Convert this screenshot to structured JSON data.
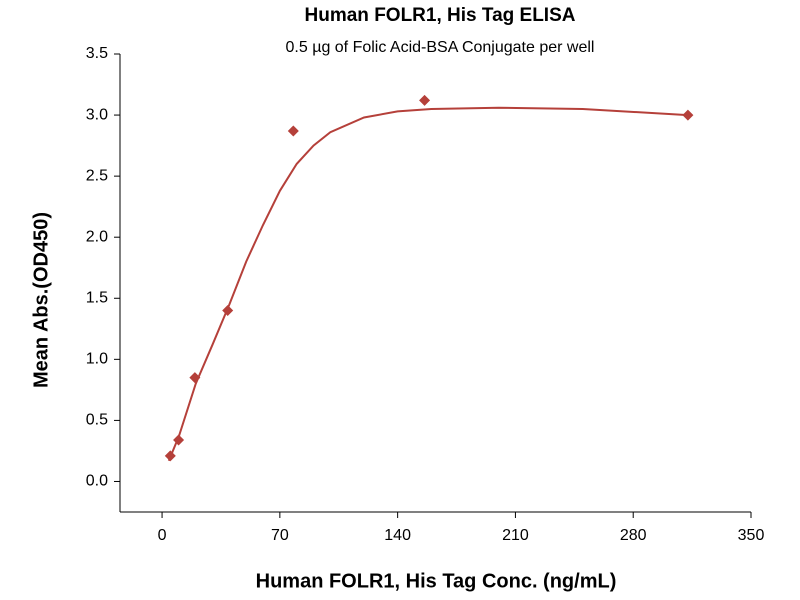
{
  "chart_data": {
    "type": "scatter",
    "title": "Human FOLR1, His Tag ELISA",
    "subtitle": "0.5 µg of Folic Acid-BSA Conjugate per well",
    "x_label": "Human FOLR1, His Tag Conc. (ng/mL)",
    "y_label": "Mean Abs.(OD450)",
    "x": [
      4.9,
      9.8,
      19.5,
      39,
      78,
      156,
      312.5
    ],
    "series": [
      {
        "color": "#b5403a",
        "values": [
          0.21,
          0.34,
          0.85,
          1.4,
          2.87,
          3.12,
          3.0
        ]
      }
    ],
    "fit": {
      "color": "#b5403a",
      "x": [
        4,
        10,
        20,
        30,
        40,
        50,
        60,
        70,
        80,
        90,
        100,
        120,
        140,
        160,
        200,
        250,
        312.5
      ],
      "values": [
        0.17,
        0.37,
        0.8,
        1.12,
        1.45,
        1.8,
        2.1,
        2.38,
        2.6,
        2.75,
        2.86,
        2.98,
        3.03,
        3.05,
        3.06,
        3.05,
        3.0
      ]
    },
    "xlim": [
      -25,
      350
    ],
    "xticks": [
      0,
      70,
      140,
      210,
      280,
      350
    ],
    "ylim": [
      -0.25,
      3.5
    ],
    "yticks": [
      {
        "value": 0,
        "label": "0.0"
      },
      0.5,
      {
        "value": 1,
        "label": "1.0"
      },
      1.5,
      {
        "value": 2,
        "label": "2.0"
      },
      2.5,
      {
        "value": 3,
        "label": "3.0"
      },
      3.5
    ]
  }
}
